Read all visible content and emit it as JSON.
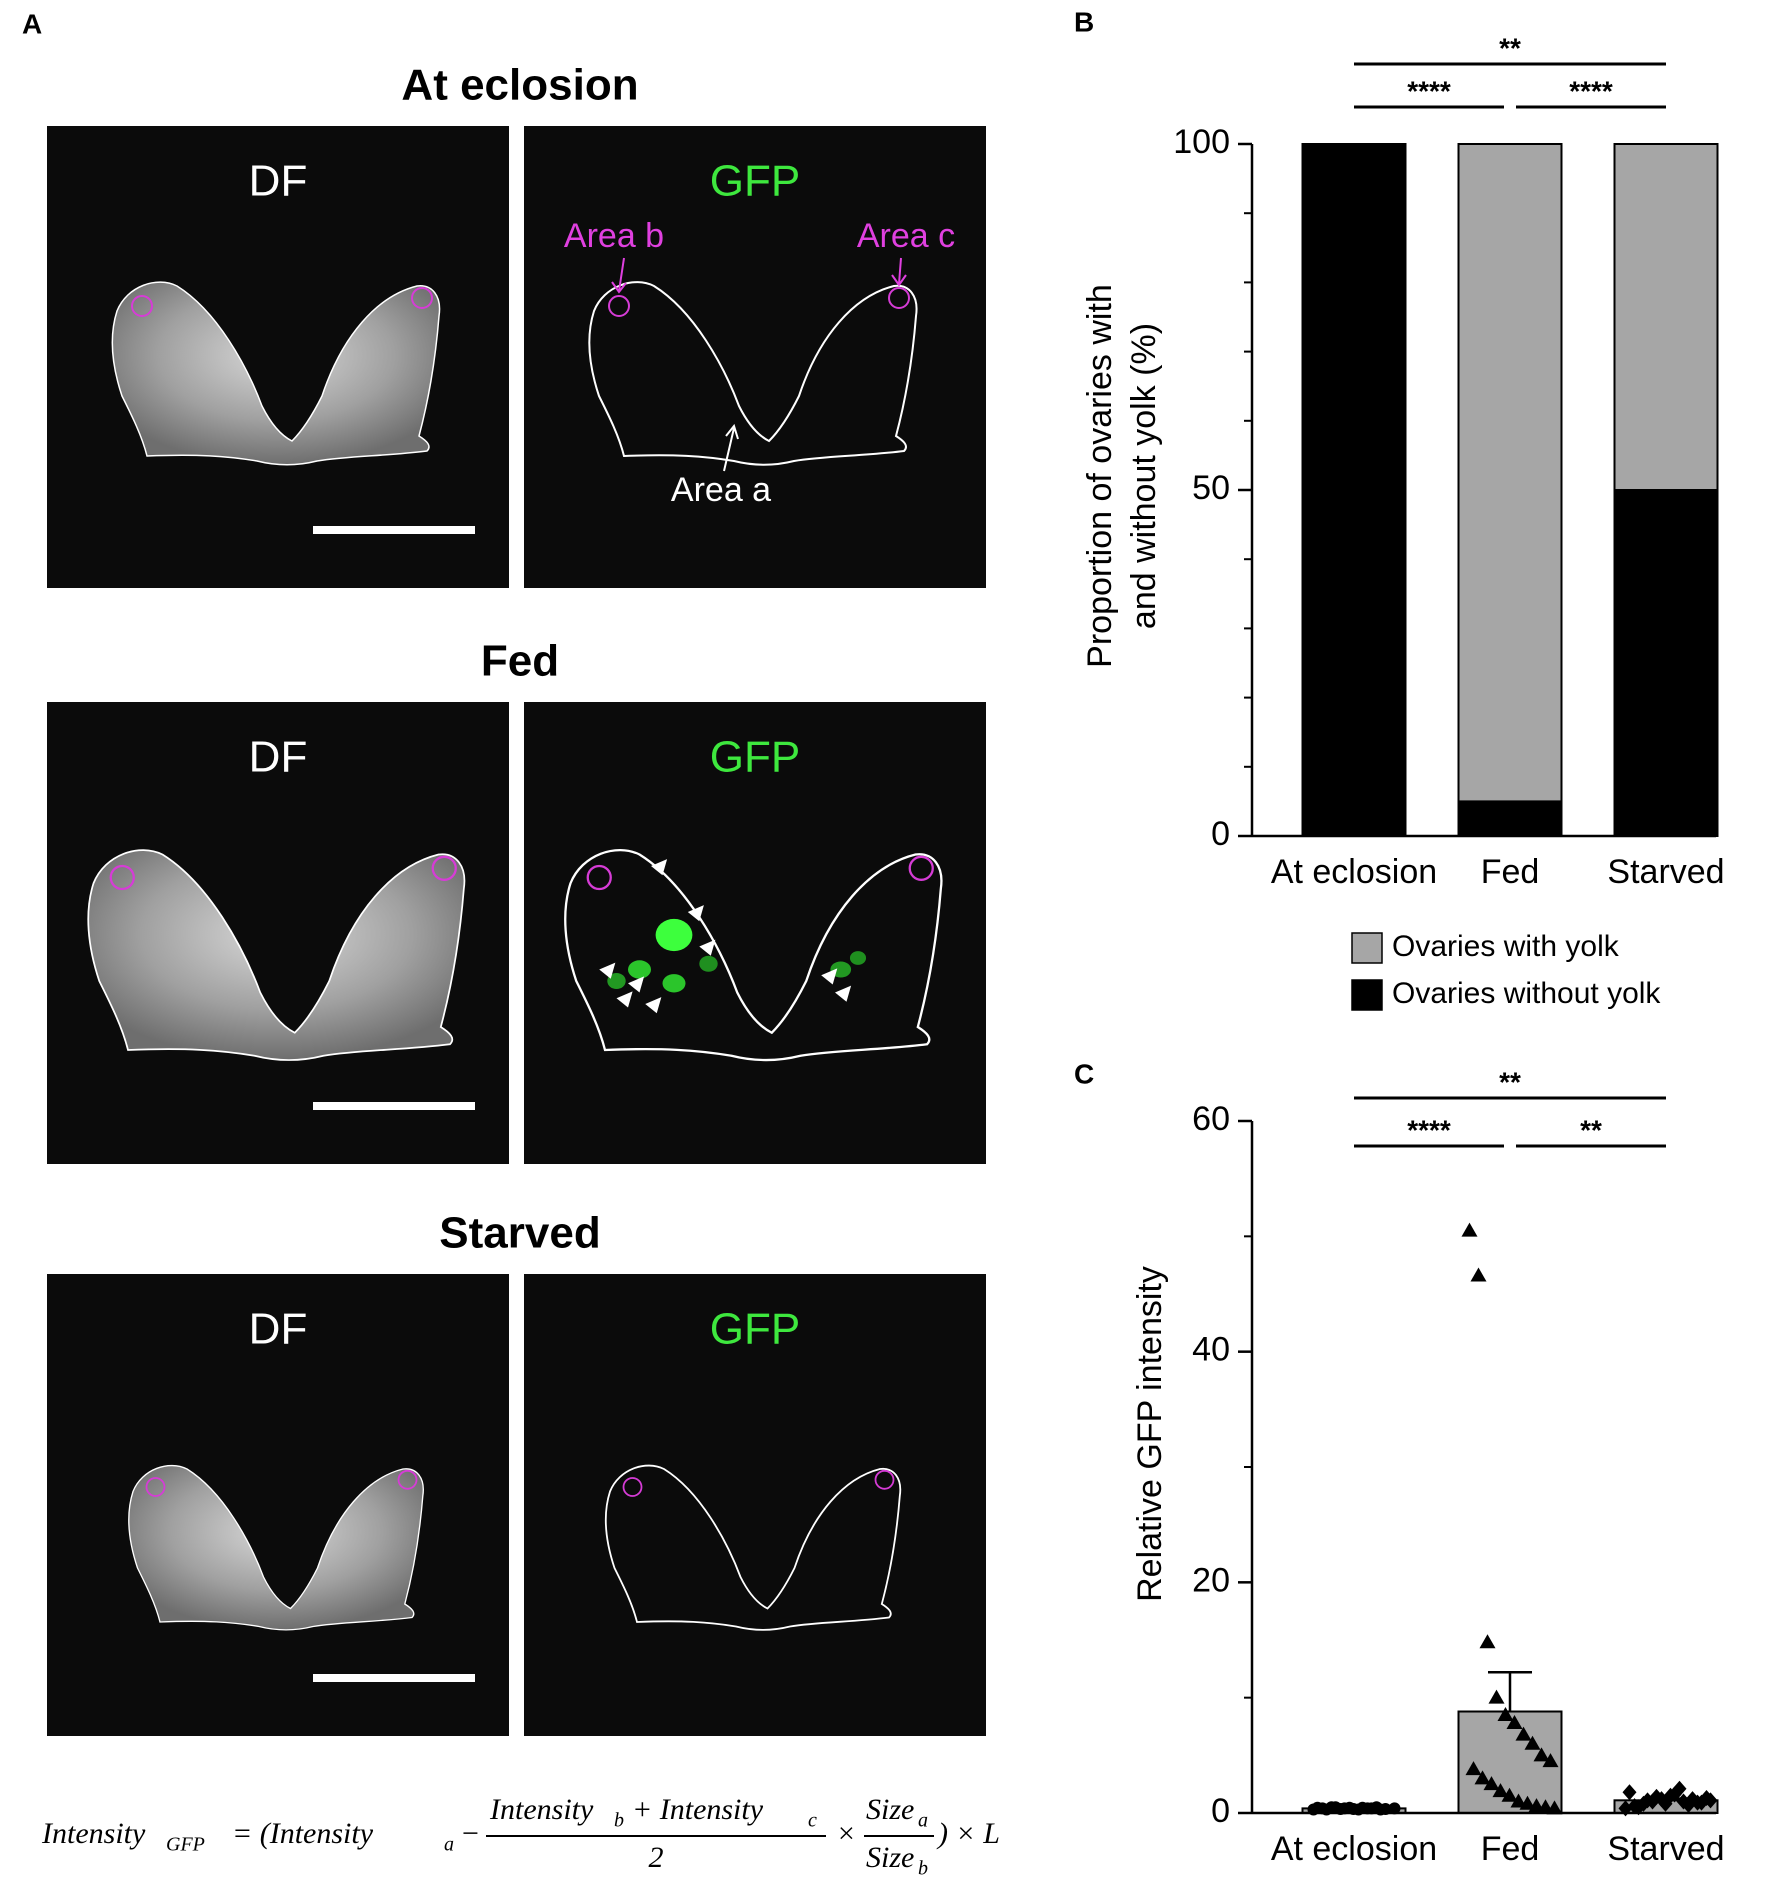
{
  "panel_labels": [
    "A",
    "B",
    "C"
  ],
  "panel_a": {
    "rows": [
      {
        "title": "At eclosion",
        "left": "DF",
        "right": "GFP",
        "annotations": [
          "Area b",
          "Area c",
          "Area a"
        ]
      },
      {
        "title": "Fed",
        "left": "DF",
        "right": "GFP"
      },
      {
        "title": "Starved",
        "left": "DF",
        "right": "GFP"
      }
    ],
    "formula": [
      "Intensity",
      "GFP",
      "= (Intensity",
      "a",
      "−",
      "Intensity",
      "b",
      "+ Intensity",
      "c",
      "2",
      "×",
      "Size",
      "a",
      "Size",
      "b",
      ") × L"
    ]
  },
  "chart_data": [
    {
      "type": "stacked_bar",
      "ylabel": [
        "Proportion of ovaries with",
        "and without yolk (%)"
      ],
      "categories": [
        "At eclosion",
        "Fed",
        "Starved"
      ],
      "series": [
        {
          "name": "Ovaries without yolk",
          "color": "#000000",
          "values": [
            100,
            5,
            50
          ]
        },
        {
          "name": "Ovaries with yolk",
          "color": "#a6a6a6",
          "values": [
            0,
            95,
            50
          ]
        }
      ],
      "ylim": [
        0,
        100
      ],
      "yticks": [
        0,
        50,
        100
      ],
      "minor_yticks": [
        10,
        20,
        30,
        40,
        60,
        70,
        80,
        90
      ],
      "significance": [
        {
          "label": "**",
          "groups": [
            0,
            2
          ]
        },
        {
          "label": "****",
          "groups": [
            0,
            1
          ]
        },
        {
          "label": "****",
          "groups": [
            1,
            2
          ]
        }
      ]
    },
    {
      "type": "bar_scatter",
      "ylabel": "Relative GFP intensity",
      "categories": [
        "At eclosion",
        "Fed",
        "Starved"
      ],
      "values": [
        0.4,
        8.8,
        1.1
      ],
      "errors": [
        0.05,
        3.4,
        0.15
      ],
      "color": "#a6a6a6",
      "markers": [
        "circle",
        "triangle",
        "diamond"
      ],
      "points": [
        [
          0.3,
          0.4,
          0.5,
          0.35,
          0.45,
          0.3,
          0.4,
          0.5,
          0.35,
          0.4,
          0.45,
          0.3,
          0.5,
          0.4,
          0.35,
          0.45,
          0.4,
          0.3
        ],
        [
          50.5,
          46.6,
          14.8,
          10,
          8.5,
          7.8,
          6.8,
          6,
          5,
          4.5,
          3.8,
          3,
          2.5,
          1.9,
          1.5,
          1,
          0.8,
          0.6,
          0.5,
          0.4
        ],
        [
          0.4,
          0.6,
          0.8,
          1,
          1.2,
          1.5,
          2.1,
          0.7,
          0.9,
          1.3,
          1.8,
          0.5,
          1.1,
          1.4,
          0.8,
          1.6,
          1,
          1.2,
          0.9,
          1.1
        ]
      ],
      "ylim": [
        0,
        60
      ],
      "yticks": [
        0,
        20,
        40,
        60
      ],
      "minor_yticks": [
        10,
        30,
        50
      ],
      "significance": [
        {
          "label": "**",
          "groups": [
            0,
            2
          ]
        },
        {
          "label": "****",
          "groups": [
            0,
            1
          ]
        },
        {
          "label": "**",
          "groups": [
            1,
            2
          ]
        }
      ]
    }
  ]
}
